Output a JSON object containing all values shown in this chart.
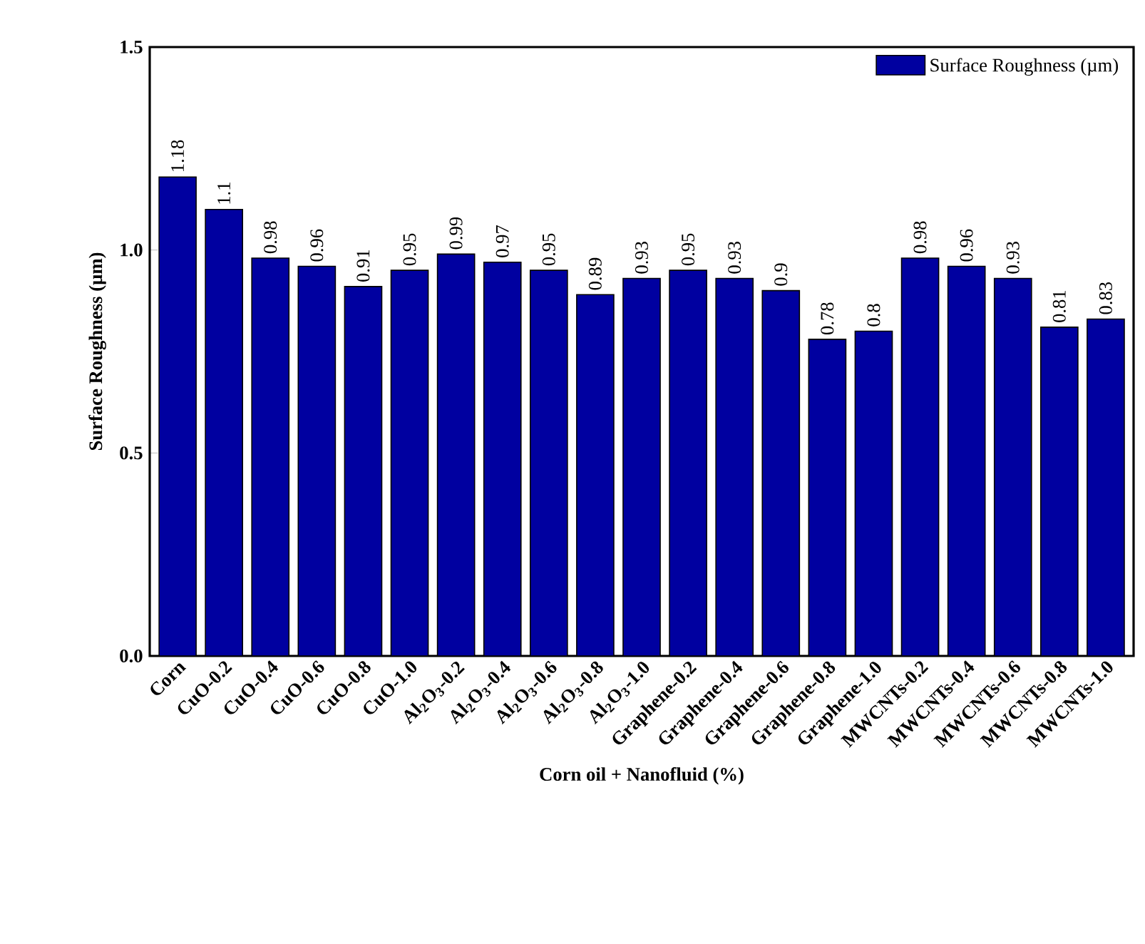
{
  "chart_data": {
    "type": "bar",
    "xlabel": "Corn oil + Nanofluid (%)",
    "ylabel": "Surface Roughness (µm)",
    "categories": [
      "Corn",
      "CuO-0.2",
      "CuO-0.4",
      "CuO-0.6",
      "CuO-0.8",
      "CuO-1.0",
      "Al$_{2}$O$_{3}$-0.2",
      "Al$_{2}$O$_{3}$-0.4",
      "Al$_{2}$O$_{3}$-0.6",
      "Al$_{2}$O$_{3}$-0.8",
      "Al$_{2}$O$_{3}$-1.0",
      "Graphene-0.2",
      "Graphene-0.4",
      "Graphene-0.6",
      "Graphene-0.8",
      "Graphene-1.0",
      "MWCNTs-0.2",
      "MWCNTs-0.4",
      "MWCNTs-0.6",
      "MWCNTs-0.8",
      "MWCNTs-1.0"
    ],
    "series": [
      {
        "name": "Surface Roughness (µm)",
        "color": "#0000a0",
        "values": [
          1.18,
          1.1,
          0.98,
          0.96,
          0.91,
          0.95,
          0.99,
          0.97,
          0.95,
          0.89,
          0.93,
          0.95,
          0.93,
          0.9,
          0.78,
          0.8,
          0.98,
          0.96,
          0.93,
          0.81,
          0.83
        ]
      }
    ],
    "ylim": [
      0,
      1.5
    ],
    "yticks": [
      {
        "value": 0,
        "label": "0.0"
      },
      0.5,
      {
        "value": 1,
        "label": "1.0"
      },
      1.5
    ],
    "data_labels": true,
    "legend": "top right",
    "grid": false
  }
}
